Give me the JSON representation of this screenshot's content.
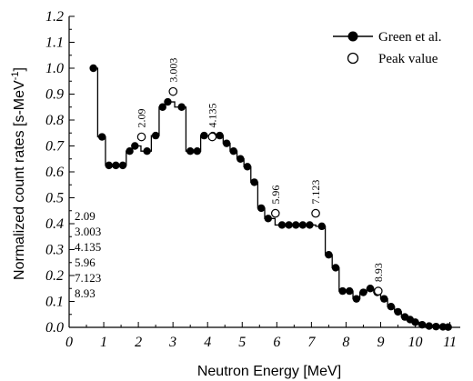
{
  "chart_data": {
    "type": "line",
    "xlabel": "Neutron Energy [MeV]",
    "ylabel_main": "Normalized count rates [s-MeV",
    "ylabel_sup": "-1",
    "ylabel_close": "]",
    "xlim": [
      0,
      11.3
    ],
    "ylim": [
      0,
      1.2
    ],
    "x_ticks": [
      "0",
      "1",
      "2",
      "3",
      "4",
      "5",
      "6",
      "7",
      "8",
      "9",
      "10",
      "11"
    ],
    "y_ticks": [
      "0.0",
      "0.1",
      "0.2",
      "0.3",
      "0.4",
      "0.5",
      "0.6",
      "0.7",
      "0.8",
      "0.9",
      "1.0",
      "1.1",
      "1.2"
    ],
    "legend": {
      "position": "top-right",
      "entries": [
        {
          "label": "Green et al.",
          "marker": "filled-circle"
        },
        {
          "label": "Peak value",
          "marker": "open-circle"
        }
      ]
    },
    "series": [
      {
        "name": "Green et al.",
        "style": "step-line-filled-circles",
        "x": [
          0.7,
          0.95,
          1.15,
          1.35,
          1.55,
          1.75,
          1.9,
          2.25,
          2.5,
          2.7,
          2.85,
          3.25,
          3.5,
          3.7,
          3.9,
          4.15,
          4.35,
          4.55,
          4.75,
          4.95,
          5.15,
          5.35,
          5.55,
          5.75,
          6.15,
          6.35,
          6.55,
          6.75,
          6.95,
          7.3,
          7.5,
          7.7,
          7.9,
          8.1,
          8.3,
          8.5,
          8.7,
          8.9,
          9.1,
          9.3,
          9.5,
          9.7,
          9.85,
          10.0,
          10.2,
          10.4,
          10.6,
          10.8,
          10.95
        ],
        "y": [
          1.0,
          0.735,
          0.625,
          0.625,
          0.625,
          0.68,
          0.7,
          0.68,
          0.74,
          0.85,
          0.87,
          0.85,
          0.68,
          0.68,
          0.74,
          0.74,
          0.74,
          0.71,
          0.68,
          0.65,
          0.62,
          0.56,
          0.46,
          0.42,
          0.395,
          0.395,
          0.395,
          0.395,
          0.395,
          0.39,
          0.28,
          0.23,
          0.14,
          0.14,
          0.11,
          0.135,
          0.15,
          0.135,
          0.11,
          0.08,
          0.06,
          0.04,
          0.03,
          0.02,
          0.01,
          0.005,
          0.003,
          0.002,
          0.001
        ]
      },
      {
        "name": "Peak value",
        "style": "open-circles",
        "x": [
          2.09,
          3.003,
          4.135,
          5.96,
          7.123,
          8.93
        ],
        "y": [
          0.735,
          0.91,
          0.735,
          0.44,
          0.44,
          0.14
        ],
        "labels": [
          "2.09",
          "3.003",
          "4.135",
          "5.96",
          "7.123",
          "8.93"
        ]
      }
    ],
    "annotations": {
      "peak_list": [
        "2.09",
        "3.003",
        "4.135",
        "5.96",
        "7.123",
        "8.93"
      ]
    }
  }
}
